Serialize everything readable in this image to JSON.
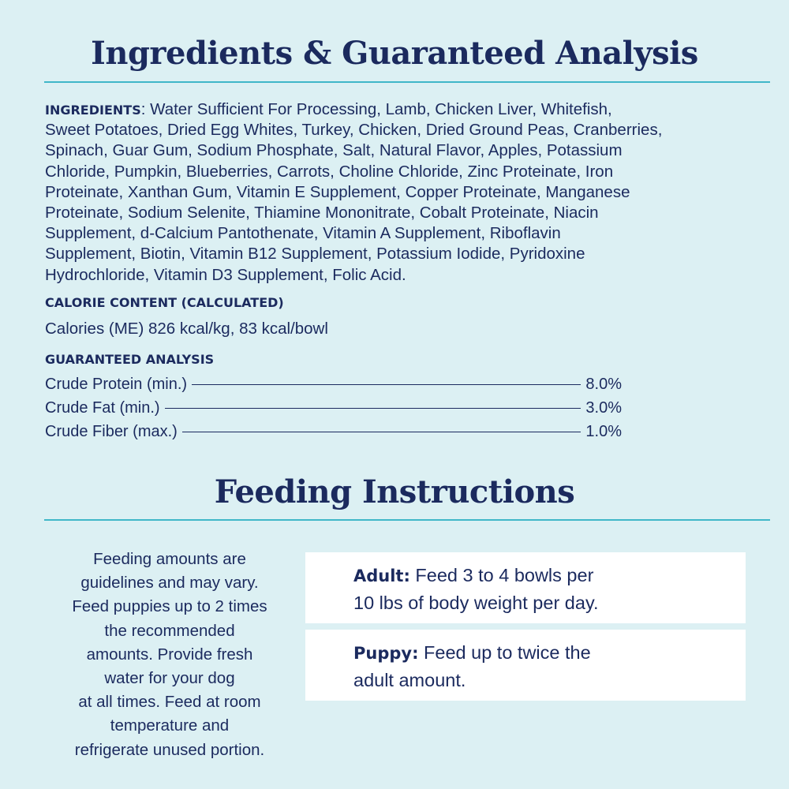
{
  "analysis_section": {
    "title": "Ingredients & Guaranteed Analysis",
    "ingredients": {
      "label": "INGREDIENTS",
      "lines": [
        ": Water Sufficient For Processing, Lamb, Chicken Liver, Whitefish,",
        "Sweet Potatoes, Dried Egg Whites, Turkey, Chicken, Dried Ground Peas, Cranberries,",
        "Spinach, Guar Gum, Sodium Phosphate, Salt, Natural Flavor, Apples, Potassium",
        "Chloride, Pumpkin, Blueberries, Carrots, Choline Chloride, Zinc Proteinate, Iron",
        "Proteinate, Xanthan Gum, Vitamin E Supplement, Copper Proteinate, Manganese",
        "Proteinate, Sodium Selenite, Thiamine Mononitrate, Cobalt Proteinate, Niacin",
        "Supplement, d-Calcium Pantothenate, Vitamin A Supplement, Riboflavin",
        "Supplement, Biotin, Vitamin B12 Supplement, Potassium Iodide, Pyridoxine",
        "Hydrochloride, Vitamin D3 Supplement, Folic Acid."
      ]
    },
    "calorie": {
      "heading": "CALORIE CONTENT (CALCULATED)",
      "text": "Calories (ME) 826 kcal/kg, 83 kcal/bowl"
    },
    "guaranteed": {
      "heading": "GUARANTEED ANALYSIS",
      "rows": [
        {
          "name": "Crude Protein (min.)",
          "value": "8.0%"
        },
        {
          "name": "Crude Fat (min.)",
          "value": "3.0%"
        },
        {
          "name": "Crude Fiber (max.)",
          "value": "1.0%"
        }
      ]
    }
  },
  "feeding_section": {
    "title": "Feeding Instructions",
    "note_lines": [
      "Feeding amounts are",
      "guidelines and may vary.",
      "Feed puppies up to 2 times",
      "the recommended",
      "amounts. Provide fresh",
      "water for your dog",
      "at all times. Feed at room",
      "temperature and",
      "refrigerate unused portion."
    ],
    "boxes": [
      {
        "label": "Adult:",
        "lines": [
          " Feed 3 to 4 bowls per",
          "10 lbs of body weight per day."
        ]
      },
      {
        "label": "Puppy:",
        "lines": [
          " Feed up to twice the",
          "adult amount."
        ]
      }
    ]
  }
}
